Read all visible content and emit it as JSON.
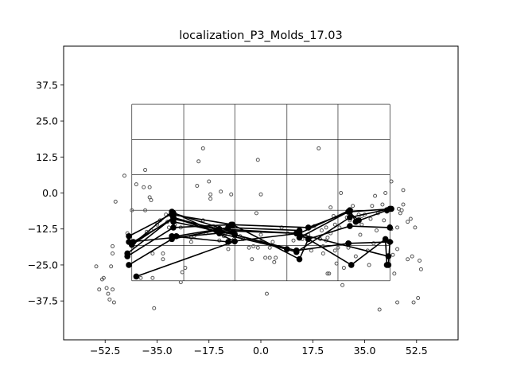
{
  "chart_data": {
    "type": "scatter",
    "title": "localization_P3_Molds_17.03",
    "xlabel": "",
    "ylabel": "",
    "xlim": [
      -66.5,
      66.5
    ],
    "ylim": [
      -51,
      51
    ],
    "xticks": [
      -52.5,
      -35.0,
      -17.5,
      0.0,
      17.5,
      35.0,
      52.5
    ],
    "xtick_labels": [
      "−52.5",
      "−35.0",
      "−17.5",
      "0.0",
      "17.5",
      "35.0",
      "52.5"
    ],
    "yticks": [
      37.5,
      25.0,
      12.5,
      0.0,
      -12.5,
      -25.0,
      -37.5
    ],
    "ytick_labels": [
      "37.5",
      "25.0",
      "12.5",
      "0.0",
      "−12.5",
      "−25.0",
      "−37.5"
    ],
    "grid_rect": {
      "x_edges": [
        -43.5,
        -26,
        -8.8,
        8.8,
        26,
        43.5
      ],
      "y_edges": [
        30.8,
        18.5,
        6.3,
        -6,
        -18.2,
        -30.5
      ]
    },
    "scatter_points": [
      [
        -55.5,
        -25.5
      ],
      [
        -54.5,
        -33.5
      ],
      [
        -53.5,
        -30
      ],
      [
        -53,
        -29.5
      ],
      [
        -52,
        -33
      ],
      [
        -51.5,
        -35
      ],
      [
        -51,
        -37
      ],
      [
        -50.5,
        -25.5
      ],
      [
        -50,
        -21
      ],
      [
        -50,
        -18.5
      ],
      [
        -50,
        -33.5
      ],
      [
        -49.5,
        -38
      ],
      [
        -49,
        -3
      ],
      [
        -46,
        6
      ],
      [
        -45,
        -14
      ],
      [
        -43.5,
        -6
      ],
      [
        -42,
        3
      ],
      [
        -40.5,
        -29.5
      ],
      [
        -39.5,
        2
      ],
      [
        -39,
        8
      ],
      [
        -39,
        -6
      ],
      [
        -38.5,
        -13.5
      ],
      [
        -37.5,
        2
      ],
      [
        -37.5,
        -1.5
      ],
      [
        -37,
        -2.5
      ],
      [
        -37,
        -13
      ],
      [
        -36.5,
        -21
      ],
      [
        -36,
        -40
      ],
      [
        -36.5,
        -29.5
      ],
      [
        -35,
        -11
      ],
      [
        -34,
        -9.5
      ],
      [
        -33,
        -21
      ],
      [
        -33,
        -23
      ],
      [
        -32,
        -7.5
      ],
      [
        -31.5,
        -10
      ],
      [
        -30,
        -9.5
      ],
      [
        -31,
        -12
      ],
      [
        -29,
        -11
      ],
      [
        -28,
        -15
      ],
      [
        -27,
        -31
      ],
      [
        -27,
        -12
      ],
      [
        -26.5,
        -27.5
      ],
      [
        -25.5,
        -26
      ],
      [
        -23.5,
        -15.5
      ],
      [
        -23.5,
        -17
      ],
      [
        -22.5,
        -15
      ],
      [
        -21.5,
        2.5
      ],
      [
        -21,
        11
      ],
      [
        -19.5,
        -9.5
      ],
      [
        -19.5,
        15.5
      ],
      [
        -18.5,
        -14
      ],
      [
        -17.5,
        4
      ],
      [
        -17,
        -0.5
      ],
      [
        -17,
        -2
      ],
      [
        -16,
        -11.5
      ],
      [
        -14,
        -16.5
      ],
      [
        -13.5,
        0.5
      ],
      [
        -12.5,
        -15
      ],
      [
        -12,
        -14.5
      ],
      [
        -11,
        -19.5
      ],
      [
        -10,
        -0.5
      ],
      [
        -9,
        -16
      ],
      [
        -8.5,
        -14
      ],
      [
        -7,
        -15
      ],
      [
        -6,
        -16
      ],
      [
        -4,
        -19
      ],
      [
        -3,
        -23
      ],
      [
        -2.5,
        -18.5
      ],
      [
        -1.5,
        -7
      ],
      [
        -1,
        -19
      ],
      [
        -1,
        11.5
      ],
      [
        0,
        -0.5
      ],
      [
        0,
        -14.5
      ],
      [
        0,
        -17
      ],
      [
        1.5,
        -22.5
      ],
      [
        2,
        -35
      ],
      [
        3,
        -19
      ],
      [
        3,
        -22.5
      ],
      [
        4,
        -17
      ],
      [
        4.5,
        -24
      ],
      [
        5,
        -22.5
      ],
      [
        7,
        -12
      ],
      [
        9,
        -14
      ],
      [
        11,
        -16.5
      ],
      [
        12,
        -20.5
      ],
      [
        14,
        -16
      ],
      [
        14.5,
        -15
      ],
      [
        16,
        -14.5
      ],
      [
        17,
        -20
      ],
      [
        18,
        -11.5
      ],
      [
        19.5,
        15.5
      ],
      [
        20,
        -16
      ],
      [
        20.5,
        -13
      ],
      [
        21,
        -18.5
      ],
      [
        21,
        -21
      ],
      [
        22,
        -16.5
      ],
      [
        22,
        -12
      ],
      [
        22.5,
        -15.5
      ],
      [
        22.5,
        -28
      ],
      [
        23.5,
        -5
      ],
      [
        23.5,
        -14
      ],
      [
        24.5,
        -8
      ],
      [
        25,
        -20
      ],
      [
        25,
        -11
      ],
      [
        25.5,
        -24.5
      ],
      [
        26,
        -19
      ],
      [
        26.5,
        -12
      ],
      [
        27,
        0
      ],
      [
        27.5,
        -32
      ],
      [
        28,
        -26
      ],
      [
        29,
        -8.5
      ],
      [
        29.5,
        -19
      ],
      [
        30,
        -17.5
      ],
      [
        30,
        -9.5
      ],
      [
        30.5,
        -6
      ],
      [
        31,
        -4.5
      ],
      [
        32,
        -22
      ],
      [
        33,
        -7.5
      ],
      [
        33.5,
        -14.5
      ],
      [
        34,
        -11
      ],
      [
        34,
        -8
      ],
      [
        35,
        -7.5
      ],
      [
        36,
        -20
      ],
      [
        36.5,
        -25
      ],
      [
        37,
        -9
      ],
      [
        37.5,
        -4.5
      ],
      [
        38,
        -17.5
      ],
      [
        38.5,
        -1
      ],
      [
        39.5,
        -7
      ],
      [
        39,
        -13
      ],
      [
        40,
        -40.5
      ],
      [
        41,
        -4
      ],
      [
        41.5,
        -9.5
      ],
      [
        42,
        0
      ],
      [
        42.5,
        -6.5
      ],
      [
        43.5,
        -11.5
      ],
      [
        44,
        -12.5
      ],
      [
        44,
        -17
      ],
      [
        44.5,
        -21.5
      ],
      [
        45,
        -28
      ],
      [
        46,
        -38
      ],
      [
        46.5,
        -5.5
      ],
      [
        46,
        -19.5
      ],
      [
        47,
        -7
      ],
      [
        48,
        1
      ],
      [
        48,
        -4
      ],
      [
        49.5,
        -23
      ],
      [
        49.5,
        -10
      ],
      [
        50.5,
        -9
      ],
      [
        51,
        -22
      ],
      [
        51.5,
        -38
      ],
      [
        52,
        -12
      ],
      [
        53,
        -36.5
      ],
      [
        53.5,
        -23.5
      ],
      [
        54,
        -26.5
      ],
      [
        44,
        4
      ],
      [
        46,
        -12
      ],
      [
        47.5,
        -6
      ],
      [
        23,
        -28
      ]
    ],
    "series": [
      {
        "x": [
          -43.5,
          -30,
          -8.8,
          -42
        ],
        "y": [
          -18,
          -6.5,
          -16.8,
          -29
        ]
      },
      {
        "x": [
          -44.5,
          -29.5,
          -9.5,
          -44.5
        ],
        "y": [
          -15,
          -7,
          -13.5,
          -17
        ]
      },
      {
        "x": [
          -43.5,
          -29.5,
          -14,
          8.8
        ],
        "y": [
          -18,
          -8.5,
          -14,
          -19.5
        ]
      },
      {
        "x": [
          -44.5,
          -30,
          -15,
          12,
          43
        ],
        "y": [
          -25,
          -16,
          -13,
          -14,
          -22
        ]
      },
      {
        "x": [
          -45,
          -29.5,
          -14,
          12,
          30,
          43.5
        ],
        "y": [
          -21,
          -8.5,
          -13,
          -20.5,
          -8.5,
          -5.5
        ]
      },
      {
        "x": [
          -43,
          -29.5,
          -14,
          12,
          16,
          30,
          43.5
        ],
        "y": [
          -17,
          -9,
          -12.5,
          -14,
          -16,
          -11.5,
          -12
        ]
      },
      {
        "x": [
          -45,
          -29.5,
          -10,
          16,
          30,
          44
        ],
        "y": [
          -22,
          -12,
          -11,
          -12,
          -6.5,
          -5.5
        ]
      },
      {
        "x": [
          -30,
          -9.5,
          13,
          16,
          30.5,
          42,
          42.5
        ],
        "y": [
          -7.5,
          -11,
          -23,
          -16,
          -25,
          -16,
          -25
        ]
      },
      {
        "x": [
          -30,
          -11,
          13,
          30,
          32,
          42.5
        ],
        "y": [
          -15,
          -17,
          -14,
          -6,
          -10,
          -6
        ]
      },
      {
        "x": [
          -29.5,
          -8.8,
          12,
          29.5,
          43.5,
          43
        ],
        "y": [
          -10,
          -14.5,
          -20,
          -17.5,
          -17,
          -25
        ]
      },
      {
        "x": [
          -28.5,
          -11,
          13
        ],
        "y": [
          -15,
          -12,
          -13
        ]
      },
      {
        "x": [
          13,
          29.5,
          33
        ],
        "y": [
          -15.5,
          -6.5,
          -9.5
        ]
      }
    ]
  }
}
